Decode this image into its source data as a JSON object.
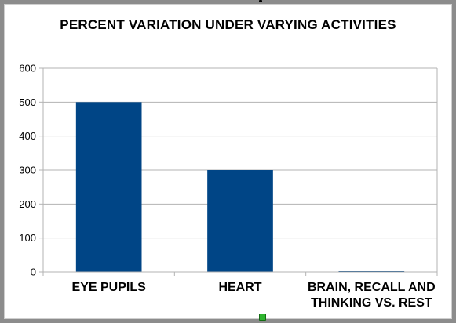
{
  "chart_data": {
    "type": "bar",
    "title": "PERCENT VARIATION UNDER VARYING ACTIVITIES",
    "categories": [
      [
        "EYE PUPILS"
      ],
      [
        "HEART"
      ],
      [
        "BRAIN, RECALL AND",
        "THINKING VS. REST"
      ]
    ],
    "values": [
      500,
      300,
      2
    ],
    "xlabel": "",
    "ylabel": "",
    "ylim": [
      0,
      600
    ],
    "yticks": [
      0,
      100,
      200,
      300,
      400,
      500,
      600
    ],
    "grid": true,
    "legend": "none",
    "bar_color": "#004586",
    "grid_color": "#b3b3b3",
    "axis_color": "#b3b3b3"
  }
}
